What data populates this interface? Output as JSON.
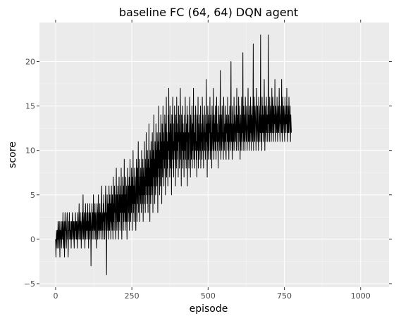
{
  "chart_data": {
    "type": "line",
    "title": "baseline FC (64, 64) DQN agent",
    "xlabel": "episode",
    "ylabel": "score",
    "xlim": [
      -53,
      1093
    ],
    "ylim": [
      -5.4,
      24.4
    ],
    "x_ticks": [
      0,
      250,
      500,
      750,
      1000
    ],
    "y_ticks": [
      -5,
      0,
      5,
      10,
      15,
      20
    ],
    "x_tick_labels": [
      "0",
      "250",
      "500",
      "750",
      "1000"
    ],
    "y_tick_labels": [
      "−5",
      "0",
      "5",
      "10",
      "15",
      "20"
    ],
    "grid": true,
    "legend": "none",
    "colors": {
      "panel": "#ebebeb",
      "grid": "#ffffff",
      "line": "#000000"
    },
    "series": [
      {
        "x_start": 0,
        "x_step": 1,
        "values": [
          0,
          -2,
          0,
          1,
          0,
          -1,
          1,
          0,
          2,
          0,
          -1,
          1,
          2,
          0,
          -2,
          1,
          0,
          2,
          1,
          -1,
          0,
          2,
          1,
          0,
          3,
          0,
          -1,
          1,
          2,
          -2,
          0,
          3,
          1,
          2,
          0,
          -1,
          1,
          2,
          3,
          0,
          1,
          -2,
          0,
          2,
          1,
          3,
          0,
          1,
          2,
          0,
          1,
          -1,
          2,
          0,
          1,
          3,
          2,
          0,
          1,
          2,
          0,
          -1,
          2,
          1,
          0,
          3,
          1,
          2,
          0,
          2,
          1,
          -1,
          2,
          3,
          0,
          1,
          2,
          4,
          0,
          2,
          1,
          3,
          0,
          2,
          -1,
          1,
          2,
          3,
          0,
          2,
          5,
          1,
          0,
          2,
          3,
          1,
          -1,
          2,
          4,
          0,
          2,
          1,
          3,
          2,
          0,
          4,
          1,
          2,
          -1,
          3,
          2,
          0,
          4,
          1,
          3,
          2,
          -3,
          1,
          2,
          4,
          0,
          3,
          1,
          2,
          5,
          0,
          3,
          2,
          1,
          4,
          0,
          2,
          3,
          1,
          -1,
          2,
          4,
          3,
          0,
          2,
          5,
          1,
          3,
          0,
          2,
          4,
          1,
          3,
          2,
          0,
          4,
          6,
          1,
          3,
          2,
          0,
          4,
          2,
          5,
          1,
          3,
          0,
          2,
          4,
          6,
          1,
          3,
          -4,
          2,
          5,
          3,
          1,
          4,
          2,
          0,
          6,
          3,
          1,
          5,
          2,
          4,
          0,
          3,
          6,
          2,
          1,
          5,
          3,
          0,
          7,
          2,
          4,
          1,
          6,
          3,
          5,
          2,
          0,
          4,
          8,
          3,
          1,
          5,
          2,
          6,
          4,
          0,
          3,
          7,
          2,
          5,
          1,
          4,
          6,
          3,
          8,
          2,
          0,
          5,
          3,
          7,
          4,
          1,
          6,
          2,
          9,
          3,
          5,
          1,
          4,
          7,
          2,
          6,
          3,
          0,
          5,
          8,
          4,
          2,
          6,
          3,
          7,
          1,
          5,
          9,
          4,
          2,
          6,
          3,
          8,
          5,
          1,
          7,
          4,
          10,
          3,
          6,
          2,
          5,
          8,
          4,
          7,
          3,
          1,
          6,
          9,
          5,
          2,
          8,
          4,
          7,
          11,
          3,
          6,
          5,
          9,
          2,
          7,
          4,
          8,
          6,
          3,
          10,
          5,
          7,
          4,
          9,
          2,
          6,
          8,
          5,
          11,
          4,
          7,
          3,
          9,
          6,
          12,
          5,
          8,
          4,
          10,
          7,
          3,
          9,
          6,
          13,
          5,
          8,
          2,
          10,
          7,
          4,
          11,
          6,
          9,
          5,
          12,
          8,
          3,
          10,
          7,
          14,
          6,
          9,
          4,
          11,
          8,
          5,
          13,
          7,
          10,
          6,
          12,
          9,
          3,
          11,
          8,
          15,
          7,
          10,
          5,
          12,
          9,
          6,
          14,
          8,
          11,
          4,
          13,
          10,
          7,
          15,
          9,
          12,
          6,
          11,
          8,
          14,
          10,
          5,
          13,
          9,
          16,
          7,
          12,
          8,
          11,
          6,
          14,
          10,
          17,
          9,
          12,
          7,
          15,
          11,
          8,
          13,
          10,
          5,
          14,
          9,
          12,
          16,
          8,
          11,
          7,
          13,
          10,
          15,
          9,
          12,
          6,
          14,
          11,
          8,
          16,
          10,
          13,
          9,
          12,
          7,
          15,
          11,
          14,
          8,
          10,
          13,
          17,
          9,
          12,
          6,
          14,
          11,
          10,
          15,
          8,
          13,
          9,
          12,
          7,
          11,
          14,
          10,
          16,
          9,
          12,
          8,
          13,
          11,
          15,
          6,
          10,
          14,
          9,
          12,
          8,
          11,
          13,
          16,
          10,
          7,
          14,
          12,
          9,
          11,
          15,
          8,
          13,
          10,
          12,
          17,
          9,
          14,
          11,
          8,
          12,
          10,
          15,
          13,
          9,
          11,
          7,
          14,
          12,
          10,
          16,
          8,
          13,
          11,
          9,
          12,
          14,
          10,
          15,
          8,
          12,
          11,
          13,
          9,
          16,
          10,
          14,
          12,
          8,
          11,
          13,
          15,
          10,
          12,
          9,
          14,
          11,
          18,
          10,
          13,
          7,
          12,
          15,
          11,
          9,
          14,
          10,
          13,
          12,
          16,
          9,
          11,
          14,
          10,
          12,
          8,
          15,
          13,
          11,
          10,
          17,
          12,
          9,
          14,
          11,
          13,
          10,
          15,
          12,
          9,
          14,
          16,
          11,
          13,
          10,
          12,
          8,
          15,
          11,
          14,
          12,
          10,
          13,
          19,
          11,
          9,
          14,
          12,
          10,
          15,
          13,
          11,
          12,
          9,
          16,
          14,
          10,
          12,
          13,
          11,
          15,
          10,
          9,
          14,
          12,
          13,
          11,
          16,
          10,
          12,
          14,
          9,
          13,
          11,
          15,
          12,
          10,
          14,
          20,
          11,
          13,
          12,
          9,
          15,
          14,
          10,
          13,
          11,
          16,
          12,
          10,
          14,
          13,
          12,
          11,
          15,
          10,
          17,
          13,
          12,
          14,
          11,
          10,
          16,
          12,
          13,
          11,
          15,
          9,
          14,
          12,
          10,
          13,
          16,
          11,
          14,
          12,
          21,
          10,
          13,
          15,
          11,
          12,
          14,
          10,
          16,
          13,
          12,
          11,
          15,
          14,
          10,
          12,
          13,
          17,
          11,
          14,
          12,
          10,
          15,
          13,
          11,
          16,
          12,
          14,
          10,
          13,
          15,
          12,
          11,
          14,
          22,
          10,
          13,
          16,
          12,
          11,
          15,
          14,
          13,
          10,
          12,
          17,
          14,
          11,
          15,
          13,
          12,
          10,
          16,
          14,
          11,
          13,
          15,
          12,
          23,
          11,
          14,
          13,
          10,
          16,
          12,
          15,
          13,
          11,
          14,
          12,
          18,
          13,
          10,
          15,
          14,
          12,
          11,
          16,
          13,
          12,
          14,
          11,
          15,
          13,
          23,
          12,
          14,
          11,
          16,
          13,
          12,
          15,
          14,
          11,
          13,
          17,
          12,
          14,
          16,
          13,
          11,
          15,
          12,
          14,
          13,
          18,
          12,
          11,
          15,
          14,
          13,
          12,
          16,
          13,
          11,
          14,
          15,
          12,
          13,
          17,
          14,
          12,
          11,
          15,
          13,
          14,
          12,
          18,
          13,
          11,
          14,
          16,
          12,
          13,
          15,
          14,
          12,
          11,
          16,
          13,
          14,
          12,
          15,
          13,
          17,
          12,
          14,
          11,
          15,
          13,
          12,
          16,
          14,
          13,
          12,
          15,
          11,
          14,
          13,
          12
        ]
      }
    ]
  }
}
